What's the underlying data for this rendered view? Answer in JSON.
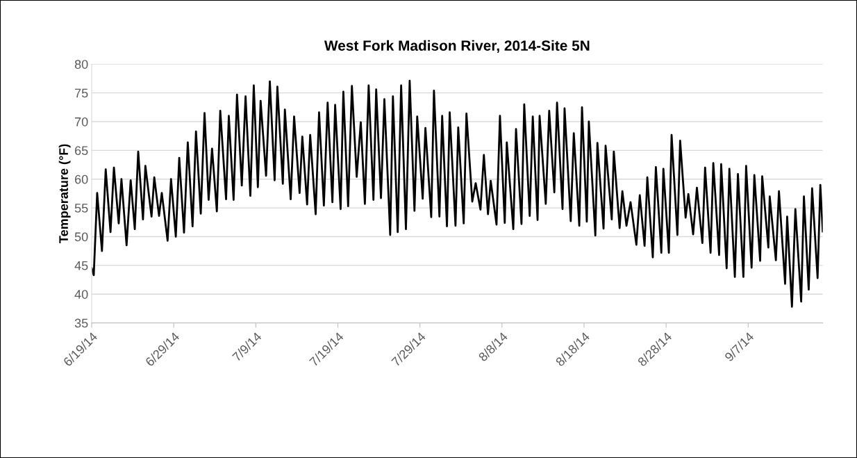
{
  "chart_data": {
    "type": "line",
    "title": "West Fork Madison River, 2014-Site 5N",
    "ylabel": "Temperature (°F)",
    "x": [
      "2014-06-19T00:00",
      "2014-06-19T06:00",
      "2014-06-19T16:00",
      "2014-06-20T06:00",
      "2014-06-20T17:00",
      "2014-06-21T07:00",
      "2014-06-21T17:00",
      "2014-06-22T07:00",
      "2014-06-22T15:00",
      "2014-06-23T06:00",
      "2014-06-23T18:00",
      "2014-06-24T06:00",
      "2014-06-24T16:00",
      "2014-06-25T06:00",
      "2014-06-25T13:00",
      "2014-06-26T07:00",
      "2014-06-26T15:00",
      "2014-06-27T05:00",
      "2014-06-27T13:00",
      "2014-06-28T06:00",
      "2014-06-28T16:00",
      "2014-06-29T06:00",
      "2014-06-29T16:00",
      "2014-06-30T06:00",
      "2014-06-30T17:00",
      "2014-07-01T07:00",
      "2014-07-01T17:00",
      "2014-07-02T07:00",
      "2014-07-02T18:00",
      "2014-07-03T06:00",
      "2014-07-03T16:00",
      "2014-07-04T06:00",
      "2014-07-04T16:00",
      "2014-07-05T09:00",
      "2014-07-05T17:00",
      "2014-07-06T07:00",
      "2014-07-06T17:00",
      "2014-07-07T07:00",
      "2014-07-07T18:00",
      "2014-07-08T08:00",
      "2014-07-08T18:00",
      "2014-07-09T06:00",
      "2014-07-09T14:00",
      "2014-07-10T06:00",
      "2014-07-10T17:00",
      "2014-07-11T07:00",
      "2014-07-11T15:00",
      "2014-07-12T07:00",
      "2014-07-12T13:00",
      "2014-07-13T06:00",
      "2014-07-13T16:00",
      "2014-07-14T08:00",
      "2014-07-14T16:00",
      "2014-07-15T06:00",
      "2014-07-15T15:00",
      "2014-07-16T07:00",
      "2014-07-16T17:00",
      "2014-07-17T07:00",
      "2014-07-17T18:00",
      "2014-07-18T08:00",
      "2014-07-18T16:00",
      "2014-07-19T08:00",
      "2014-07-19T16:00",
      "2014-07-20T06:00",
      "2014-07-20T17:00",
      "2014-07-21T07:00",
      "2014-07-21T19:00",
      "2014-07-22T07:00",
      "2014-07-22T18:00",
      "2014-07-23T08:00",
      "2014-07-23T16:00",
      "2014-07-24T06:00",
      "2014-07-24T16:00",
      "2014-07-25T09:00",
      "2014-07-25T17:00",
      "2014-07-26T07:00",
      "2014-07-26T17:00",
      "2014-07-27T07:00",
      "2014-07-27T18:00",
      "2014-07-28T08:00",
      "2014-07-28T16:00",
      "2014-07-29T08:00",
      "2014-07-29T16:00",
      "2014-07-30T09:00",
      "2014-07-30T17:00",
      "2014-07-31T09:00",
      "2014-07-31T17:00",
      "2014-08-01T07:00",
      "2014-08-01T15:00",
      "2014-08-02T08:00",
      "2014-08-02T16:00",
      "2014-08-03T08:00",
      "2014-08-03T16:00",
      "2014-08-04T09:00",
      "2014-08-04T19:00",
      "2014-08-05T09:00",
      "2014-08-05T19:00",
      "2014-08-06T07:00",
      "2014-08-06T15:00",
      "2014-08-07T08:00",
      "2014-08-07T18:00",
      "2014-08-08T08:00",
      "2014-08-08T14:00",
      "2014-08-09T09:00",
      "2014-08-09T17:00",
      "2014-08-10T09:00",
      "2014-08-10T17:00",
      "2014-08-11T09:00",
      "2014-08-11T18:00",
      "2014-08-12T08:00",
      "2014-08-12T14:00",
      "2014-08-13T08:00",
      "2014-08-13T18:00",
      "2014-08-14T09:00",
      "2014-08-14T17:00",
      "2014-08-15T09:00",
      "2014-08-15T15:00",
      "2014-08-16T09:00",
      "2014-08-16T18:00",
      "2014-08-17T10:00",
      "2014-08-17T18:00",
      "2014-08-18T08:00",
      "2014-08-18T14:00",
      "2014-08-19T09:00",
      "2014-08-19T15:00",
      "2014-08-20T09:00",
      "2014-08-20T15:00",
      "2014-08-21T09:00",
      "2014-08-21T15:00",
      "2014-08-22T08:00",
      "2014-08-22T16:00",
      "2014-08-23T04:00",
      "2014-08-23T16:00",
      "2014-08-24T09:00",
      "2014-08-24T19:00",
      "2014-08-25T09:00",
      "2014-08-25T17:00",
      "2014-08-26T09:00",
      "2014-08-26T18:00",
      "2014-08-27T10:00",
      "2014-08-27T16:00",
      "2014-08-28T08:00",
      "2014-08-28T16:00",
      "2014-08-29T09:00",
      "2014-08-29T17:00",
      "2014-08-30T09:00",
      "2014-08-30T17:00",
      "2014-08-31T07:00",
      "2014-08-31T18:00",
      "2014-09-01T10:00",
      "2014-09-01T18:00",
      "2014-09-02T10:00",
      "2014-09-02T18:00",
      "2014-09-03T11:00",
      "2014-09-03T17:00",
      "2014-09-04T09:00",
      "2014-09-04T17:00",
      "2014-09-05T09:00",
      "2014-09-05T18:00",
      "2014-09-06T10:00",
      "2014-09-06T18:00",
      "2014-09-07T10:00",
      "2014-09-07T18:00",
      "2014-09-08T11:00",
      "2014-09-08T17:00",
      "2014-09-09T11:00",
      "2014-09-09T15:00",
      "2014-09-10T09:00",
      "2014-09-10T18:00",
      "2014-09-11T12:00",
      "2014-09-11T18:00",
      "2014-09-12T08:00",
      "2014-09-12T18:00",
      "2014-09-13T11:00",
      "2014-09-13T19:00",
      "2014-09-14T09:00",
      "2014-09-14T19:00",
      "2014-09-15T11:00",
      "2014-09-15T19:00",
      "2014-09-16T02:00"
    ],
    "series": [
      {
        "color": "#000000",
        "values": [
          44.5,
          43.3,
          57.6,
          47.5,
          61.7,
          50.8,
          62,
          52.3,
          60,
          48.5,
          59.8,
          51.3,
          64.8,
          53,
          62.3,
          53.5,
          60.3,
          53.6,
          57.6,
          49.3,
          60,
          50,
          63.7,
          50.7,
          66.4,
          51.8,
          68.3,
          54,
          71.5,
          56.4,
          65.3,
          54.4,
          71.9,
          56.5,
          71,
          56.4,
          74.7,
          58.9,
          74.4,
          57.1,
          76.3,
          58.6,
          73.6,
          60.6,
          77,
          59.8,
          76.1,
          59.2,
          72.1,
          56.5,
          70.9,
          57.6,
          67.4,
          55.6,
          67.7,
          53.9,
          71.6,
          55.4,
          73.3,
          56,
          72.9,
          54.8,
          75.2,
          55.3,
          76.2,
          60.4,
          69.9,
          55.7,
          76.3,
          56.4,
          75.6,
          56.7,
          73.9,
          50.3,
          74.4,
          50.8,
          76.3,
          51.3,
          77.1,
          54.5,
          70.9,
          56.6,
          68.9,
          53.4,
          75.4,
          53.5,
          71,
          51.8,
          71.6,
          51.9,
          69,
          52.3,
          71.4,
          56.1,
          59.3,
          54.7,
          64.2,
          53.9,
          59.7,
          52.1,
          71,
          52.4,
          66.4,
          51.3,
          68.7,
          52.2,
          73,
          53.6,
          70.9,
          52.9,
          71,
          55.7,
          71.9,
          57.7,
          73.3,
          54.8,
          72.3,
          52.7,
          68,
          51.9,
          72.5,
          52.6,
          70,
          50.2,
          66.3,
          51.4,
          65.8,
          53,
          64.8,
          51.5,
          57.9,
          51.9,
          56,
          48.6,
          57.2,
          48.4,
          60.3,
          46.4,
          62.1,
          47.2,
          61.8,
          47.2,
          67.7,
          50.3,
          66.7,
          53.3,
          57.4,
          50.4,
          58.5,
          48.9,
          62,
          47.2,
          62.8,
          46.8,
          62.6,
          44.5,
          61.8,
          43,
          60.9,
          43,
          62.3,
          44.6,
          60.7,
          45.8,
          60.5,
          48.1,
          57,
          45.9,
          57.9,
          41.8,
          53.5,
          37.8,
          54.8,
          38.7,
          57,
          40.8,
          58.4,
          42.8,
          59,
          50.9
        ]
      }
    ],
    "xlim": [
      "2014-06-19T00:00",
      "2014-09-16T02:00"
    ],
    "xticks": [
      {
        "value": "2014-06-19",
        "label": "6/19/14"
      },
      {
        "value": "2014-06-29",
        "label": "6/29/14"
      },
      {
        "value": "2014-07-09",
        "label": "7/9/14"
      },
      {
        "value": "2014-07-19",
        "label": "7/19/14"
      },
      {
        "value": "2014-07-29",
        "label": "7/29/14"
      },
      {
        "value": "2014-08-08",
        "label": "8/8/14"
      },
      {
        "value": "2014-08-18",
        "label": "8/18/14"
      },
      {
        "value": "2014-08-28",
        "label": "8/28/14"
      },
      {
        "value": "2014-09-07",
        "label": "9/7/14"
      }
    ],
    "ylim": [
      35,
      80
    ],
    "yticks": [
      35,
      40,
      45,
      50,
      55,
      60,
      65,
      70,
      75,
      80
    ],
    "grid": "y",
    "legend": false,
    "marker": "none",
    "line_style": "solid"
  }
}
